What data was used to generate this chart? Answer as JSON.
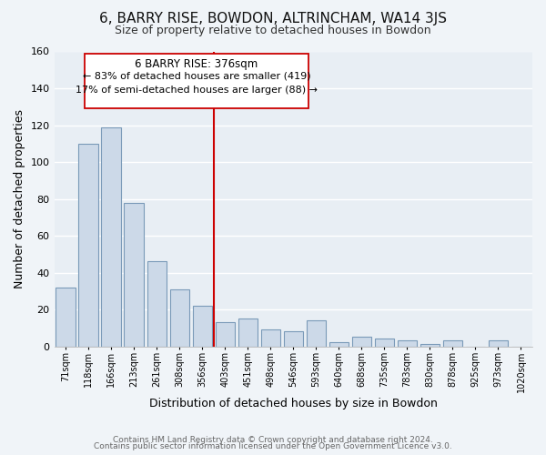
{
  "title": "6, BARRY RISE, BOWDON, ALTRINCHAM, WA14 3JS",
  "subtitle": "Size of property relative to detached houses in Bowdon",
  "xlabel": "Distribution of detached houses by size in Bowdon",
  "ylabel": "Number of detached properties",
  "bar_color": "#ccd9e8",
  "bar_edge_color": "#7a9ab8",
  "categories": [
    "71sqm",
    "118sqm",
    "166sqm",
    "213sqm",
    "261sqm",
    "308sqm",
    "356sqm",
    "403sqm",
    "451sqm",
    "498sqm",
    "546sqm",
    "593sqm",
    "640sqm",
    "688sqm",
    "735sqm",
    "783sqm",
    "830sqm",
    "878sqm",
    "925sqm",
    "973sqm",
    "1020sqm"
  ],
  "values": [
    32,
    110,
    119,
    78,
    46,
    31,
    22,
    13,
    15,
    9,
    8,
    14,
    2,
    5,
    4,
    3,
    1,
    3,
    0,
    3,
    0
  ],
  "ylim": [
    0,
    160
  ],
  "yticks": [
    0,
    20,
    40,
    60,
    80,
    100,
    120,
    140,
    160
  ],
  "vline_x": 6.5,
  "vline_color": "#cc0000",
  "annotation_title": "6 BARRY RISE: 376sqm",
  "annotation_line1": "← 83% of detached houses are smaller (419)",
  "annotation_line2": "17% of semi-detached houses are larger (88) →",
  "annotation_box_color": "#ffffff",
  "annotation_box_edge": "#cc0000",
  "footer1": "Contains HM Land Registry data © Crown copyright and database right 2024.",
  "footer2": "Contains public sector information licensed under the Open Government Licence v3.0.",
  "background_color": "#f0f4f8",
  "plot_bg_color": "#e8eef4",
  "grid_color": "#ffffff",
  "title_fontsize": 11,
  "subtitle_fontsize": 9,
  "annotation_fontsize": 8.5
}
